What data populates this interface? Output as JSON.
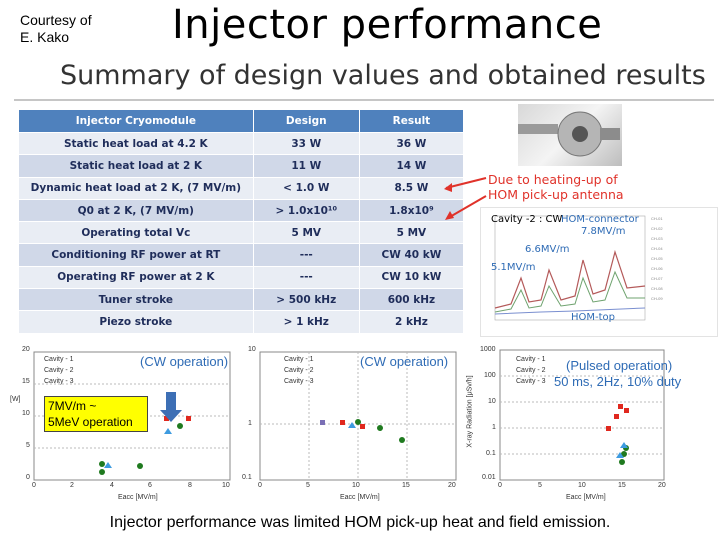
{
  "header": {
    "courtesy": "Courtesy of\nE. Kako",
    "title": "Injector performance",
    "subtitle": "Summary of design values and obtained results"
  },
  "table": {
    "headers": [
      "Injector Cryomodule",
      "Design",
      "Result"
    ],
    "rows": [
      [
        "Static heat load at 4.2 K",
        "33 W",
        "36 W"
      ],
      [
        "Static heat load at 2 K",
        "11 W",
        "14 W"
      ],
      [
        "Dynamic heat load at 2 K, (7 MV/m)",
        "< 1.0 W",
        "8.5 W"
      ],
      [
        "Q0 at 2 K, (7 MV/m)",
        "> 1.0x10¹⁰",
        "1.8x10⁹"
      ],
      [
        "Operating total Vc",
        "5 MV",
        "5 MV"
      ],
      [
        "Conditioning RF power at RT",
        "---",
        "CW 40 kW"
      ],
      [
        "Operating RF power at 2 K",
        "---",
        "CW 10 kW"
      ],
      [
        "Tuner stroke",
        "> 500 kHz",
        "600 kHz"
      ],
      [
        "Piezo stroke",
        "> 1 kHz",
        "2 kHz"
      ]
    ]
  },
  "annotations": {
    "heating": "Due to heating-up of\nHOM pick-up antenna",
    "cavity": "Cavity -2 : CW",
    "hom_connector": "HOM-connector",
    "v78": "7.8MV/m",
    "v66": "6.6MV/m",
    "v51": "5.1MV/m",
    "hom_top": "HOM-top",
    "yellow": "7MV/m ~\n5MeV operation"
  },
  "plots": {
    "p1": {
      "mode": "(CW operation)",
      "legend": [
        "Cavity - 1",
        "Cavity - 2",
        "Cavity - 3"
      ],
      "xlabel": "Eacc [MV/m]",
      "xticks": [
        "0",
        "2",
        "4",
        "6",
        "8",
        "10"
      ],
      "yticks": [
        "20",
        "15",
        "10",
        "5",
        "0"
      ],
      "ylabel": "[W]"
    },
    "p2": {
      "mode": "(CW operation)",
      "legend": [
        "Cavity - 1",
        "Cavity - 2",
        "Cavity - 3"
      ],
      "xlabel": "Eacc [MV/m]",
      "xticks": [
        "0",
        "5",
        "10",
        "15",
        "20"
      ],
      "yticks": [
        "10",
        "1",
        "0.1"
      ]
    },
    "p3": {
      "mode": "(Pulsed operation)",
      "mode2": "50 ms, 2Hz, 10% duty",
      "legend": [
        "Cavity - 1",
        "Cavity - 2",
        "Cavity - 3"
      ],
      "xlabel": "Eacc [MV/m]",
      "xticks": [
        "0",
        "5",
        "10",
        "15",
        "20"
      ],
      "yticks": [
        "1000",
        "100",
        "10",
        "1",
        "0.1",
        "0.01"
      ],
      "ylabel": "X-ray Radiation [μSv/h]"
    }
  },
  "colors": {
    "table_header": "#4f81bd",
    "red_text": "#e0322a",
    "blue_text": "#2e6bb5",
    "c1": "#1f7a1f",
    "c2": "#e0281e",
    "c3": "#3d9be0"
  },
  "footer": "Injector performance was limited HOM pick-up heat and field emission."
}
